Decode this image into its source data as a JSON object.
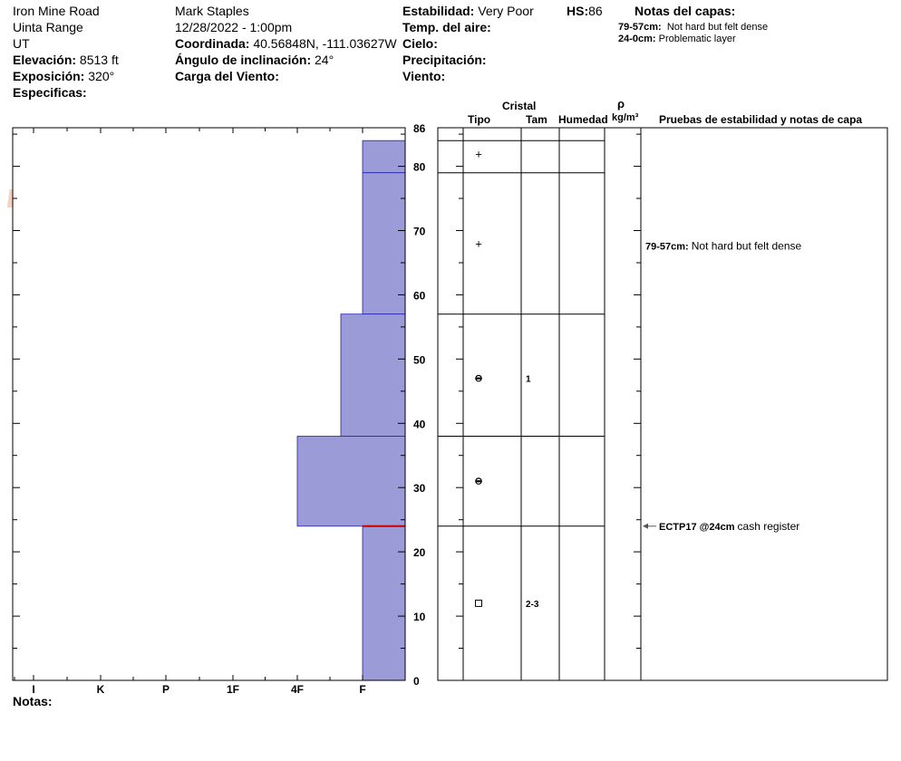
{
  "header": {
    "location": "Iron Mine Road",
    "range": "Uinta Range",
    "state": "UT",
    "elevation_label": "Elevación:",
    "elevation_value": "8513 ft",
    "exposure_label": "Exposición:",
    "exposure_value": "320°",
    "specifics_label": "Especificas:",
    "observer": "Mark Staples",
    "datetime": "12/28/2022 - 1:00pm",
    "coord_label": "Coordinada:",
    "coord_value": "40.56848N, -111.03627W",
    "slope_label": "Ángulo de inclinación:",
    "slope_value": "24°",
    "wind_load_label": "Carga del Viento:",
    "stability_label": "Estabilidad:",
    "stability_value": "Very Poor",
    "hs_label": "HS:",
    "hs_value": "86",
    "air_temp_label": "Temp. del aire:",
    "sky_label": "Cielo:",
    "precip_label": "Precipitación:",
    "wind_label": "Viento:",
    "layer_notes_label": "Notas del capas:",
    "layer_notes": [
      {
        "range": "79-57cm:",
        "text": "Not hard but felt dense"
      },
      {
        "range": "24-0cm:",
        "text": "Problematic layer"
      }
    ]
  },
  "columns": {
    "crystal": "Cristal",
    "type": "Tipo",
    "size": "Tam",
    "moisture": "Humedad",
    "rho": "ρ",
    "density_unit": "kg/m³",
    "tests": "Pruebas de estabilidad y notas de capa"
  },
  "logo_text": "SNOW PILOT",
  "notes_label": "Notas:",
  "colors": {
    "layer_fill": "#9b9bd7",
    "layer_edge": "#2222aa",
    "weak_layer": "#cc0000",
    "logo": "#f2c9b8",
    "flake": "#c7d3dd"
  },
  "chart_data": {
    "type": "bar",
    "title": "",
    "xlabel": "",
    "ylabel": "",
    "hardness_scale": [
      "I",
      "K",
      "P",
      "1F",
      "4F",
      "F"
    ],
    "hardness_ticks": [
      "I",
      "K",
      "P",
      "1F",
      "4F",
      "F"
    ],
    "ylim": [
      0,
      86
    ],
    "y_ticks": [
      "86",
      "80",
      "70",
      "60",
      "50",
      "40",
      "30",
      "20",
      "10",
      "0"
    ],
    "y_tick_values": [
      86,
      80,
      70,
      60,
      50,
      40,
      30,
      20,
      10,
      0
    ],
    "layers": [
      {
        "top": 84,
        "bottom": 79,
        "hardness": "F"
      },
      {
        "top": 79,
        "bottom": 57,
        "hardness": "F"
      },
      {
        "top": 57,
        "bottom": 38,
        "hardness": "F+"
      },
      {
        "top": 38,
        "bottom": 24,
        "hardness": "4F"
      },
      {
        "top": 24,
        "bottom": 0,
        "hardness": "F"
      }
    ],
    "layer_boundaries": [
      84,
      79,
      57,
      38,
      24
    ],
    "weak_layer_depth": 24,
    "crystals": [
      {
        "depth": 82,
        "symbol": "+",
        "size": ""
      },
      {
        "depth": 68,
        "symbol": "+",
        "size": ""
      },
      {
        "depth": 47,
        "symbol": "rounding",
        "size": "1"
      },
      {
        "depth": 31,
        "symbol": "rounding",
        "size": ""
      },
      {
        "depth": 12,
        "symbol": "faceted",
        "size": "2-3"
      }
    ],
    "layer_comments": [
      {
        "depth": 68,
        "range": "79-57cm:",
        "text": "Not hard but felt dense"
      }
    ],
    "stability_tests": [
      {
        "depth": 24,
        "label": "ECTP17 @24cm",
        "comment": "cash register"
      }
    ]
  }
}
